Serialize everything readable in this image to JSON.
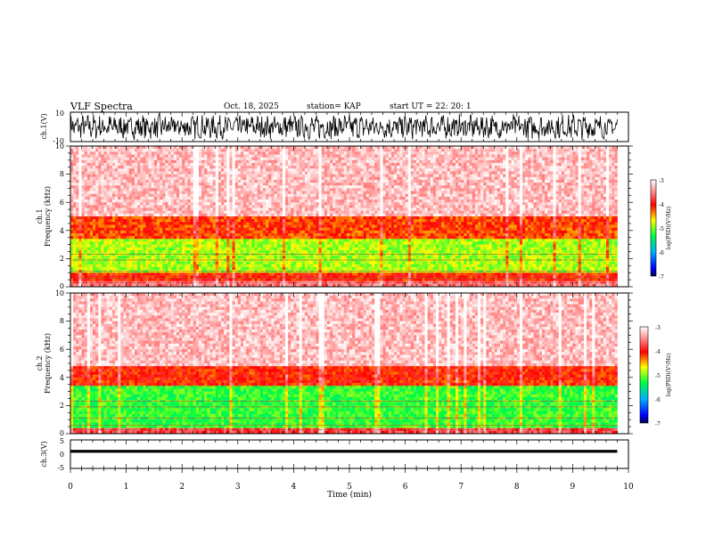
{
  "header": {
    "title": "VLF Spectra",
    "date": "Oct. 18, 2025",
    "station": "station= KAP",
    "start_ut": "start  UT =   22: 20: 1"
  },
  "chart_data": [
    {
      "type": "line",
      "name": "ch1-waveform",
      "ylabel": "ch.1(V)",
      "ylim": [
        -10,
        10
      ],
      "yticks": [
        "10",
        "-10"
      ],
      "description_values": "dense noise waveform spanning about -8 to 9 V across 0-9.8 min"
    },
    {
      "type": "heatmap",
      "name": "ch1-spectrogram",
      "ylabel_line1": "ch.1",
      "ylabel_line2": "Frequency  (kHz)",
      "xlim": [
        0,
        10
      ],
      "ylim": [
        0,
        10
      ],
      "yticks": [
        "0",
        "2",
        "4",
        "6",
        "8",
        "10"
      ],
      "data_xmax": 9.8,
      "bands_khz": [
        {
          "from": 0.0,
          "to": 0.4,
          "level": -3.6
        },
        {
          "from": 0.4,
          "to": 1.0,
          "level": -4.1
        },
        {
          "from": 1.0,
          "to": 3.5,
          "level": -4.9
        },
        {
          "from": 3.5,
          "to": 5.0,
          "level": -4.2
        },
        {
          "from": 5.0,
          "to": 10.0,
          "level": -3.3
        }
      ],
      "colorbar": {
        "label": "log(PSD)(V²/Hz)",
        "range": [
          -7,
          -3
        ],
        "ticks": [
          "-3",
          "-4",
          "-5",
          "-6",
          "-7"
        ]
      }
    },
    {
      "type": "heatmap",
      "name": "ch2-spectrogram",
      "ylabel_line1": "ch.2",
      "ylabel_line2": "Frequency  (kHz)",
      "xlim": [
        0,
        10
      ],
      "ylim": [
        0,
        10
      ],
      "yticks": [
        "0",
        "2",
        "4",
        "6",
        "8",
        "10"
      ],
      "data_xmax": 9.8,
      "bands_khz": [
        {
          "from": 0.0,
          "to": 0.4,
          "level": -3.8
        },
        {
          "from": 0.4,
          "to": 3.4,
          "level": -5.2
        },
        {
          "from": 3.4,
          "to": 4.8,
          "level": -4.1
        },
        {
          "from": 4.8,
          "to": 10.0,
          "level": -3.3
        }
      ],
      "colorbar": {
        "label": "log(PSD)(V²/Hz)",
        "range": [
          -7,
          -3
        ],
        "ticks": [
          "-3",
          "-4",
          "-5",
          "-6",
          "-7"
        ]
      }
    },
    {
      "type": "line",
      "name": "ch3-trace",
      "ylabel": "ch.3(V)",
      "ylim": [
        -5,
        5
      ],
      "yticks": [
        "5",
        "0",
        "-5"
      ],
      "level_min": 0.5,
      "level_max": 1.5
    }
  ],
  "x_axis": {
    "label": "Time  (min)",
    "ticks": [
      "0",
      "1",
      "2",
      "3",
      "4",
      "5",
      "6",
      "7",
      "8",
      "9",
      "10"
    ]
  }
}
